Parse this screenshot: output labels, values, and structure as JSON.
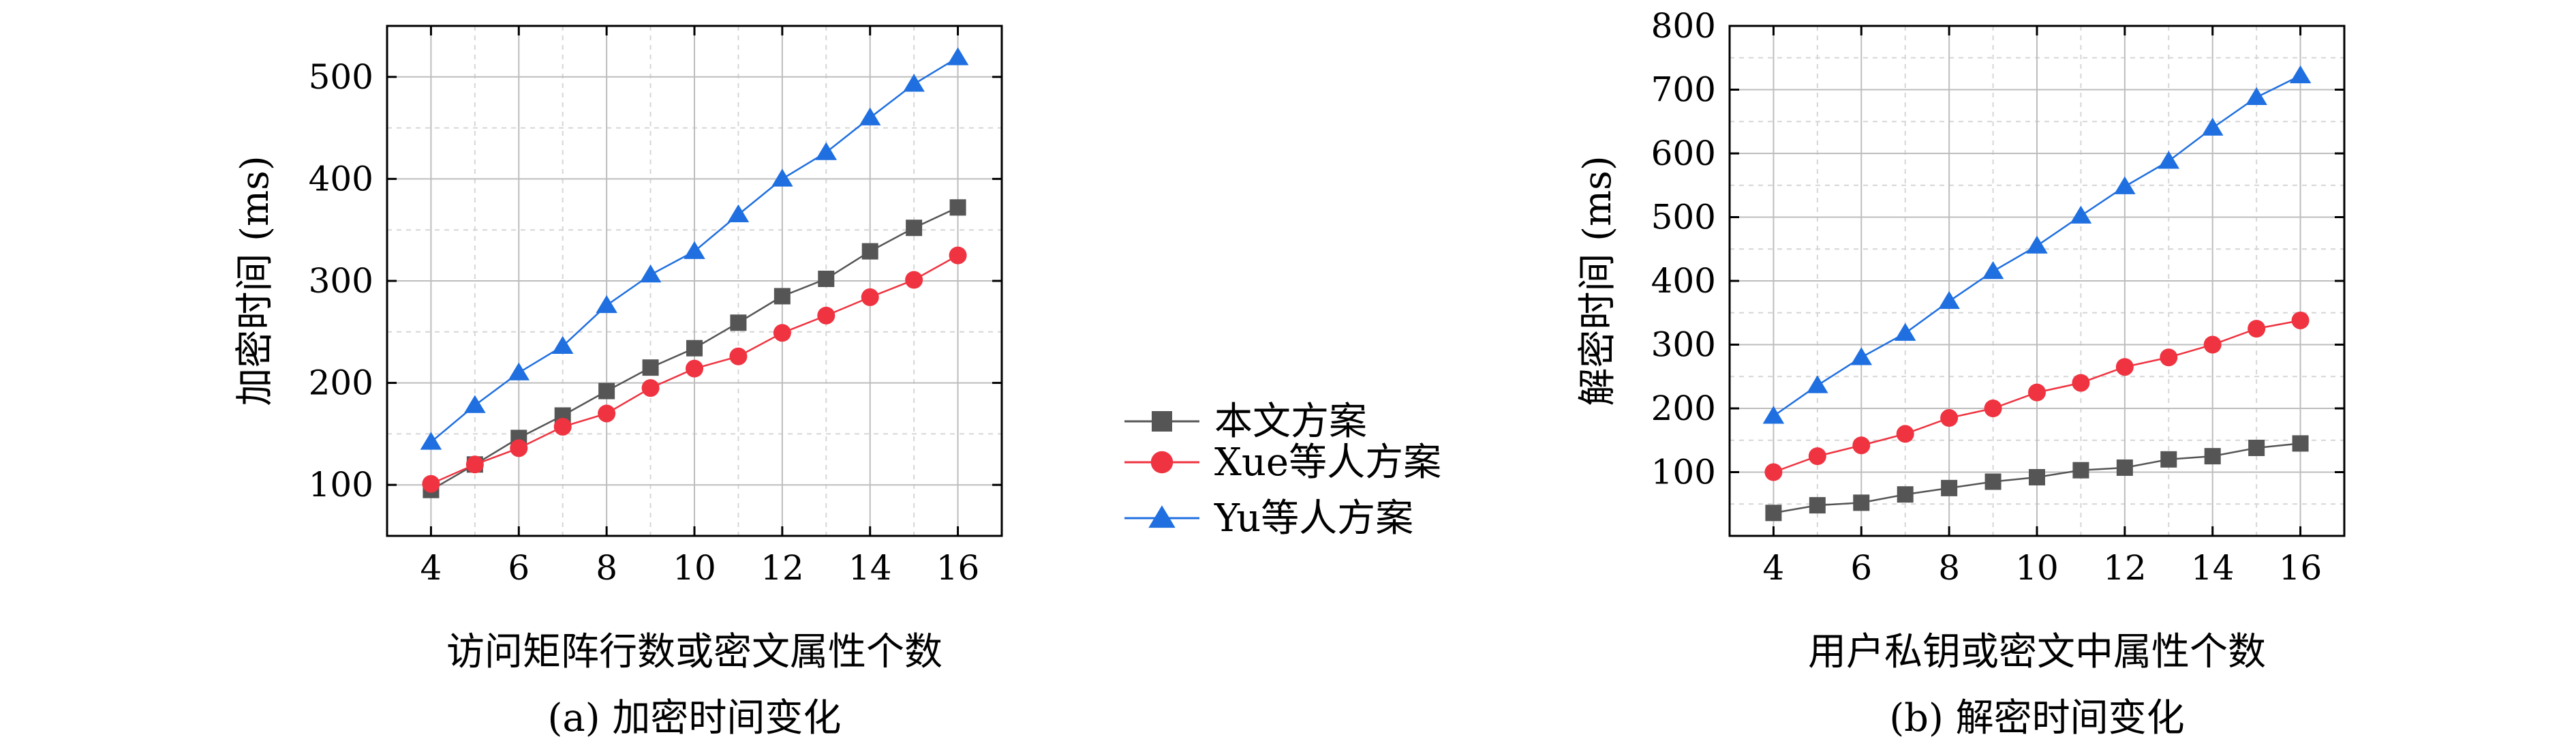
{
  "legend": {
    "entries": [
      {
        "label": "本文方案",
        "color": "#555555",
        "marker": "square"
      },
      {
        "label": "Xue等人方案",
        "color": "#ef3340",
        "marker": "circle"
      },
      {
        "label": "Yu等人方案",
        "color": "#1f6fe0",
        "marker": "triangle"
      }
    ]
  },
  "chart_data": [
    {
      "type": "line",
      "caption": "(a) 加密时间变化",
      "xlabel": "访问矩阵行数或密文属性个数",
      "ylabel": "加密时间 (ms)",
      "xlim": [
        3,
        17
      ],
      "ylim": [
        50,
        550
      ],
      "xticks": [
        4,
        6,
        8,
        10,
        12,
        14,
        16
      ],
      "yticks": [
        100,
        200,
        300,
        400,
        500
      ],
      "grid": true,
      "x": [
        4,
        5,
        6,
        7,
        8,
        9,
        10,
        11,
        12,
        13,
        14,
        15,
        16
      ],
      "series": [
        {
          "name": "本文方案",
          "color": "#555555",
          "marker": "square",
          "values": [
            95,
            120,
            146,
            168,
            192,
            215,
            234,
            259,
            285,
            302,
            329,
            352,
            372
          ]
        },
        {
          "name": "Xue等人方案",
          "color": "#ef3340",
          "marker": "circle",
          "values": [
            101,
            120,
            136,
            157,
            170,
            195,
            214,
            226,
            249,
            266,
            284,
            301,
            325
          ]
        },
        {
          "name": "Yu等人方案",
          "color": "#1f6fe0",
          "marker": "triangle",
          "values": [
            142,
            178,
            210,
            236,
            276,
            306,
            329,
            365,
            400,
            426,
            460,
            493,
            519
          ]
        }
      ]
    },
    {
      "type": "line",
      "caption": "(b) 解密时间变化",
      "xlabel": "用户私钥或密文中属性个数",
      "ylabel": "解密时间 (ms)",
      "xlim": [
        3,
        17
      ],
      "ylim": [
        0,
        800
      ],
      "xticks": [
        4,
        6,
        8,
        10,
        12,
        14,
        16
      ],
      "yticks": [
        100,
        200,
        300,
        400,
        500,
        600,
        700,
        800
      ],
      "grid": true,
      "x": [
        4,
        5,
        6,
        7,
        8,
        9,
        10,
        11,
        12,
        13,
        14,
        15,
        16
      ],
      "series": [
        {
          "name": "本文方案",
          "color": "#555555",
          "marker": "square",
          "values": [
            36,
            48,
            52,
            65,
            75,
            85,
            92,
            103,
            107,
            120,
            125,
            138,
            145
          ]
        },
        {
          "name": "Xue等人方案",
          "color": "#ef3340",
          "marker": "circle",
          "values": [
            100,
            125,
            142,
            160,
            185,
            200,
            225,
            240,
            265,
            280,
            300,
            325,
            338
          ]
        },
        {
          "name": "Yu等人方案",
          "color": "#1f6fe0",
          "marker": "triangle",
          "values": [
            188,
            236,
            280,
            318,
            368,
            415,
            455,
            502,
            548,
            588,
            640,
            688,
            722
          ]
        }
      ]
    }
  ]
}
